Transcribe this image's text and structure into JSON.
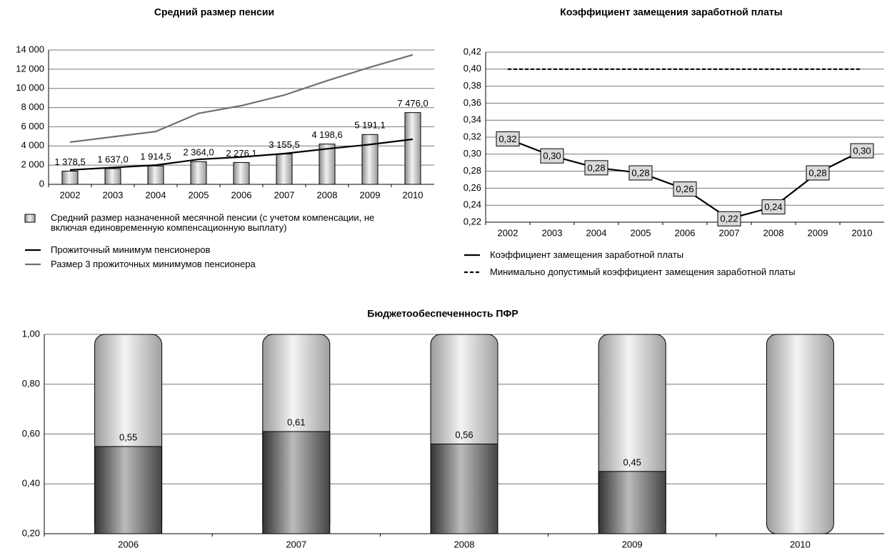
{
  "chart_data": [
    {
      "type": "bar",
      "title": "Средний размер пенсии",
      "categories": [
        "2002",
        "2003",
        "2004",
        "2005",
        "2006",
        "2007",
        "2008",
        "2009",
        "2010"
      ],
      "series": [
        {
          "name": "Средний размер назначенной месячной пенсии (с учетом компенсации, не включая единовременную компенсационную выплату)",
          "type": "bar",
          "color": "#c8c8c8",
          "values": [
            1378.5,
            1637.0,
            1914.5,
            2364.0,
            2276.1,
            3155.5,
            4198.6,
            5191.1,
            7476.0
          ],
          "value_labels": [
            "1 378,5",
            "1 637,0",
            "1 914,5",
            "2 364,0",
            "2 276,1",
            "3 155,5",
            "4 198,6",
            "5 191,1",
            "7 476,0"
          ]
        },
        {
          "name": "Прожиточный минимум пенсионеров",
          "type": "line",
          "color": "#000000",
          "values": [
            1500,
            1750,
            2000,
            2600,
            2850,
            3200,
            3700,
            4150,
            4700
          ]
        },
        {
          "name": "Размер 3 прожиточных минимумов пенсионера",
          "type": "line",
          "color": "#707070",
          "values": [
            4400,
            4950,
            5500,
            7400,
            8200,
            9300,
            10800,
            12200,
            13500
          ]
        }
      ],
      "ylim": [
        0,
        14000
      ],
      "yticks": [
        0,
        {
          "value": 2000,
          "label": "2 000"
        },
        {
          "value": 4000,
          "label": "4 000"
        },
        {
          "value": 6000,
          "label": "6 000"
        },
        {
          "value": 8000,
          "label": "8 000"
        },
        {
          "value": 10000,
          "label": "10 000"
        },
        {
          "value": 12000,
          "label": "12 000"
        },
        {
          "value": 14000,
          "label": "14 000"
        }
      ],
      "grid": true
    },
    {
      "type": "line",
      "title": "Коэффициент замещения заработной платы",
      "categories": [
        "2002",
        "2003",
        "2004",
        "2005",
        "2006",
        "2007",
        "2008",
        "2009",
        "2010"
      ],
      "series": [
        {
          "name": "Коэффициент замещения заработной платы",
          "color": "#000000",
          "style": "solid",
          "values": [
            0.318,
            0.298,
            0.284,
            0.278,
            0.259,
            0.224,
            0.238,
            0.278,
            0.304
          ],
          "value_labels": [
            "0,32",
            "0,30",
            "0,28",
            "0,28",
            "0,26",
            "0,22",
            "0,24",
            "0,28",
            "0,30"
          ]
        },
        {
          "name": "Минимально допустимый коэффициент замещения заработной платы",
          "color": "#000000",
          "style": "dashed",
          "values": [
            0.4,
            0.4,
            0.4,
            0.4,
            0.4,
            0.4,
            0.4,
            0.4,
            0.4
          ]
        }
      ],
      "ylim": [
        0.22,
        0.42
      ],
      "yticks": [
        {
          "value": 0.22,
          "label": "0,22"
        },
        {
          "value": 0.24,
          "label": "0,24"
        },
        {
          "value": 0.26,
          "label": "0,26"
        },
        {
          "value": 0.28,
          "label": "0,28"
        },
        {
          "value": 0.3,
          "label": "0,30"
        },
        {
          "value": 0.32,
          "label": "0,32"
        },
        {
          "value": 0.34,
          "label": "0,34"
        },
        {
          "value": 0.36,
          "label": "0,36"
        },
        {
          "value": 0.38,
          "label": "0,38"
        },
        {
          "value": 0.4,
          "label": "0,40"
        },
        {
          "value": 0.42,
          "label": "0,42"
        }
      ],
      "grid": true
    },
    {
      "type": "bar",
      "title": "Бюджетообеспеченность ПФР",
      "categories": [
        "2006",
        "2007",
        "2008",
        "2009",
        "2010"
      ],
      "series": [
        {
          "type": "bar",
          "color": "#5a5a5a",
          "background": "#c8c8c8",
          "values": [
            0.55,
            0.61,
            0.56,
            0.45,
            null
          ],
          "value_labels": [
            "0,55",
            "0,61",
            "0,56",
            "0,45",
            null
          ]
        }
      ],
      "ylim": [
        0.2,
        1.0
      ],
      "yticks": [
        {
          "value": 0.2,
          "label": "0,20"
        },
        {
          "value": 0.4,
          "label": "0,40"
        },
        {
          "value": 0.6,
          "label": "0,60"
        },
        {
          "value": 0.8,
          "label": "0,80"
        },
        {
          "value": 1.0,
          "label": "1,00"
        }
      ],
      "grid": true
    }
  ]
}
